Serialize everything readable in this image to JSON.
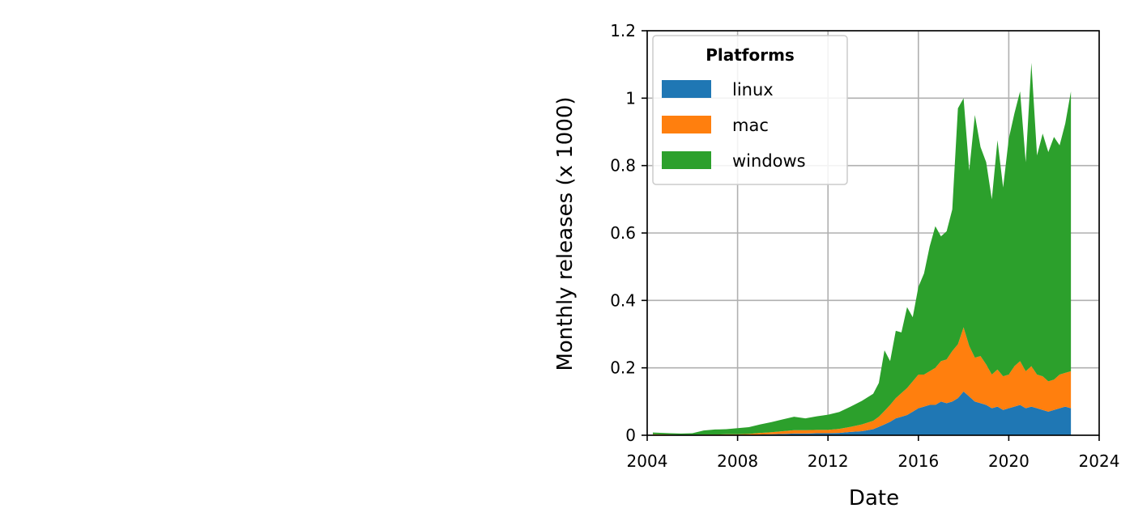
{
  "chart_data": {
    "type": "area",
    "stacked": true,
    "xlabel": "Date",
    "ylabel": "Monthly releases (x 1000)",
    "xlim": [
      2004,
      2024
    ],
    "ylim": [
      0,
      1.2
    ],
    "x_ticks": [
      2004,
      2008,
      2012,
      2016,
      2020,
      2024
    ],
    "y_ticks": [
      0,
      0.2,
      0.4,
      0.6,
      0.8,
      1,
      1.2
    ],
    "y_tick_labels": [
      "0",
      "0.2",
      "0.4",
      "0.6",
      "0.8",
      "1",
      "1.2"
    ],
    "grid": true,
    "legend": {
      "title": "Platforms",
      "position": "top-left"
    },
    "x": [
      2004.25,
      2005.0,
      2005.5,
      2006.0,
      2006.5,
      2007.0,
      2007.5,
      2008.0,
      2008.5,
      2009.0,
      2009.5,
      2010.0,
      2010.5,
      2011.0,
      2011.5,
      2012.0,
      2012.5,
      2013.0,
      2013.5,
      2014.0,
      2014.25,
      2014.5,
      2014.75,
      2015.0,
      2015.25,
      2015.5,
      2015.75,
      2016.0,
      2016.25,
      2016.5,
      2016.75,
      2017.0,
      2017.25,
      2017.5,
      2017.75,
      2018.0,
      2018.25,
      2018.5,
      2018.75,
      2019.0,
      2019.25,
      2019.5,
      2019.75,
      2020.0,
      2020.25,
      2020.5,
      2020.75,
      2021.0,
      2021.25,
      2021.5,
      2021.75,
      2022.0,
      2022.25,
      2022.5,
      2022.75
    ],
    "series": [
      {
        "name": "linux",
        "color": "#1f77b4",
        "values": [
          0.0,
          0.0,
          0.0,
          0.0,
          0.0,
          0.0,
          0.0,
          0.0,
          0.0,
          0.002,
          0.003,
          0.004,
          0.005,
          0.005,
          0.006,
          0.006,
          0.007,
          0.01,
          0.012,
          0.018,
          0.025,
          0.032,
          0.04,
          0.05,
          0.055,
          0.06,
          0.07,
          0.08,
          0.085,
          0.09,
          0.09,
          0.1,
          0.095,
          0.1,
          0.11,
          0.13,
          0.115,
          0.1,
          0.095,
          0.09,
          0.08,
          0.085,
          0.075,
          0.08,
          0.085,
          0.09,
          0.08,
          0.085,
          0.08,
          0.075,
          0.07,
          0.075,
          0.08,
          0.085,
          0.08
        ]
      },
      {
        "name": "mac",
        "color": "#ff7f0e",
        "values": [
          0.003,
          0.002,
          0.001,
          0.001,
          0.002,
          0.002,
          0.003,
          0.003,
          0.004,
          0.005,
          0.006,
          0.008,
          0.01,
          0.01,
          0.01,
          0.01,
          0.012,
          0.015,
          0.02,
          0.025,
          0.03,
          0.04,
          0.05,
          0.06,
          0.07,
          0.08,
          0.09,
          0.1,
          0.095,
          0.1,
          0.11,
          0.12,
          0.13,
          0.15,
          0.16,
          0.19,
          0.15,
          0.13,
          0.14,
          0.12,
          0.1,
          0.11,
          0.1,
          0.1,
          0.12,
          0.13,
          0.11,
          0.12,
          0.1,
          0.1,
          0.09,
          0.09,
          0.1,
          0.1,
          0.11
        ]
      },
      {
        "name": "windows",
        "color": "#2ca02c",
        "values": [
          0.005,
          0.004,
          0.004,
          0.005,
          0.012,
          0.015,
          0.015,
          0.018,
          0.02,
          0.025,
          0.03,
          0.035,
          0.04,
          0.035,
          0.04,
          0.045,
          0.05,
          0.06,
          0.07,
          0.08,
          0.1,
          0.18,
          0.13,
          0.2,
          0.18,
          0.24,
          0.19,
          0.26,
          0.3,
          0.37,
          0.42,
          0.37,
          0.38,
          0.42,
          0.7,
          0.68,
          0.52,
          0.72,
          0.62,
          0.6,
          0.52,
          0.68,
          0.56,
          0.7,
          0.75,
          0.8,
          0.62,
          0.9,
          0.65,
          0.72,
          0.68,
          0.72,
          0.68,
          0.74,
          0.83
        ]
      }
    ]
  }
}
